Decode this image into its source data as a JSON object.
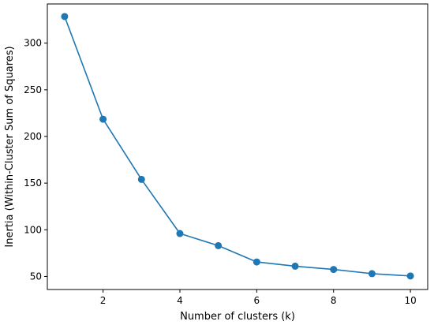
{
  "chart_data": {
    "type": "line",
    "title": "",
    "xlabel": "Number of clusters (k)",
    "ylabel": "Inertia (Within-Cluster Sum of Squares)",
    "xlim": [
      0.55,
      10.45
    ],
    "ylim": [
      36,
      342
    ],
    "grid": false,
    "series": [
      {
        "color": "#1f77b4",
        "marker": "circle",
        "x": [
          1,
          2,
          3,
          4,
          5,
          6,
          7,
          8,
          9,
          10
        ],
        "y": [
          328.5,
          218.5,
          154,
          96,
          83,
          65.5,
          61,
          57.5,
          53,
          50.5
        ]
      }
    ],
    "xticks": [
      2,
      4,
      6,
      8,
      10
    ],
    "xtick_labels": [
      "2",
      "4",
      "6",
      "8",
      "10"
    ],
    "yticks": [
      50,
      100,
      150,
      200,
      250,
      300
    ],
    "ytick_labels": [
      "50",
      "100",
      "150",
      "200",
      "250",
      "300"
    ]
  }
}
